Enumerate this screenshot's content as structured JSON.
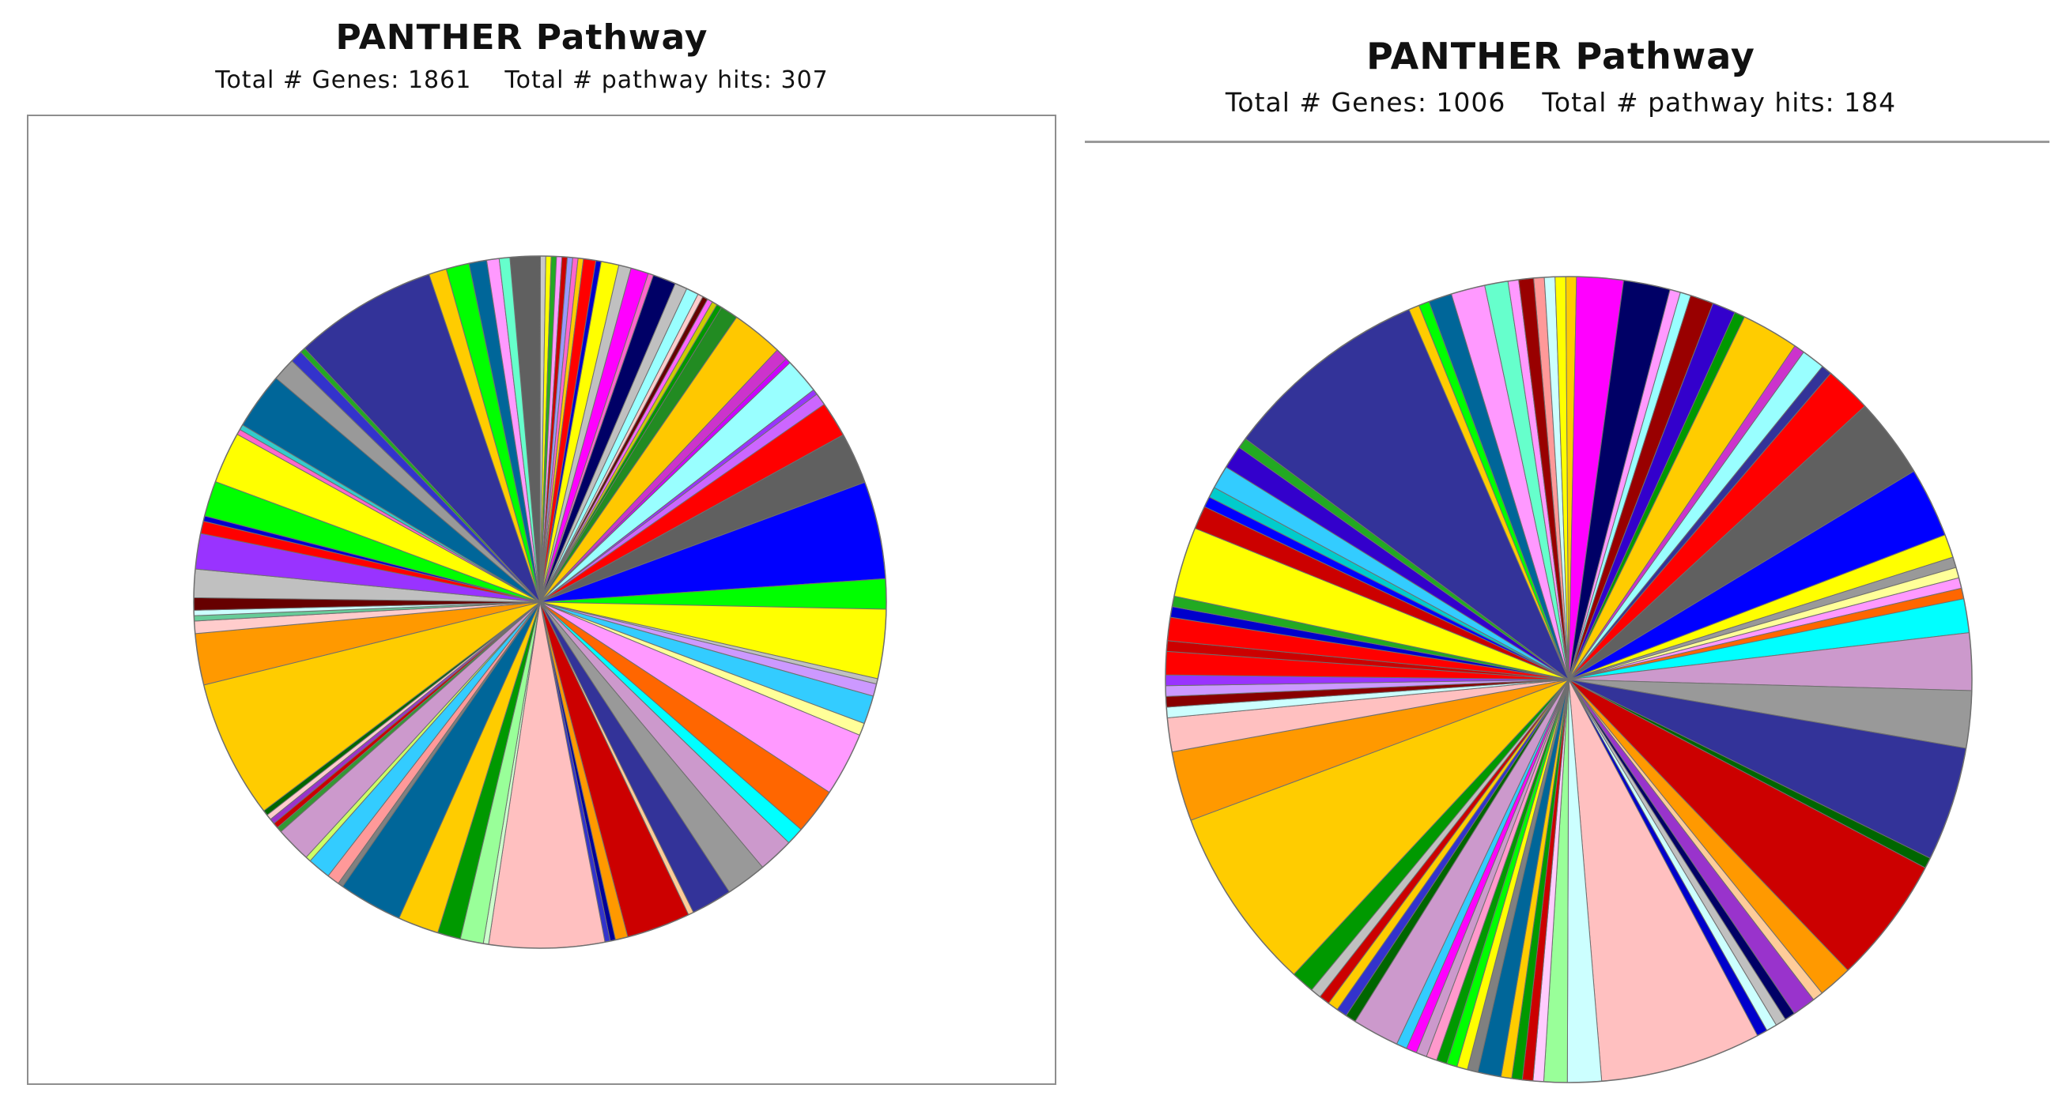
{
  "chart_data": [
    {
      "type": "pie",
      "title": "PANTHER Pathway",
      "subtitle": "Total # Genes: 1861    Total # pathway hits: 307",
      "total_genes": 1861,
      "total_pathway_hits": 307,
      "start_angle_deg": -95,
      "slices": [
        {
          "value": 1.7,
          "color": "#606060"
        },
        {
          "value": 0.3,
          "color": "#c9c9c9"
        },
        {
          "value": 0.3,
          "color": "#ffff00"
        },
        {
          "value": 0.3,
          "color": "#22aa22"
        },
        {
          "value": 0.3,
          "color": "#ff99ff"
        },
        {
          "value": 0.3,
          "color": "#cc0000"
        },
        {
          "value": 0.3,
          "color": "#9999ff"
        },
        {
          "value": 0.3,
          "color": "#ff66cc"
        },
        {
          "value": 0.3,
          "color": "#ffcc00"
        },
        {
          "value": 0.7,
          "color": "#ff0000"
        },
        {
          "value": 0.3,
          "color": "#0000cc"
        },
        {
          "value": 1.0,
          "color": "#ffff00"
        },
        {
          "value": 0.7,
          "color": "#c0c0c0"
        },
        {
          "value": 1.0,
          "color": "#ff00ff"
        },
        {
          "value": 0.3,
          "color": "#ff66cc"
        },
        {
          "value": 1.3,
          "color": "#000066"
        },
        {
          "value": 0.7,
          "color": "#c0c0c0"
        },
        {
          "value": 0.7,
          "color": "#99ffff"
        },
        {
          "value": 0.3,
          "color": "#ffcccc"
        },
        {
          "value": 0.3,
          "color": "#660000"
        },
        {
          "value": 0.3,
          "color": "#ff66ff"
        },
        {
          "value": 0.3,
          "color": "#cccc00"
        },
        {
          "value": 0.3,
          "color": "#009900"
        },
        {
          "value": 1.0,
          "color": "#228b22"
        },
        {
          "value": 2.9,
          "color": "#ffc800"
        },
        {
          "value": 0.7,
          "color": "#cc33cc"
        },
        {
          "value": 0.3,
          "color": "#cc00ff"
        },
        {
          "value": 2.0,
          "color": "#99ffff"
        },
        {
          "value": 0.3,
          "color": "#9933ff"
        },
        {
          "value": 0.7,
          "color": "#cc66ff"
        },
        {
          "value": 2.0,
          "color": "#ff0000"
        },
        {
          "value": 2.9,
          "color": "#606060"
        },
        {
          "value": 5.5,
          "color": "#0000ff"
        },
        {
          "value": 1.7,
          "color": "#00ff00"
        },
        {
          "value": 3.9,
          "color": "#ffff00"
        },
        {
          "value": 0.3,
          "color": "#c0c0c0"
        },
        {
          "value": 0.7,
          "color": "#cc99ff"
        },
        {
          "value": 1.6,
          "color": "#33ccff"
        },
        {
          "value": 0.7,
          "color": "#ffff99"
        },
        {
          "value": 3.6,
          "color": "#ff99ff"
        },
        {
          "value": 2.6,
          "color": "#ff6600"
        },
        {
          "value": 1.0,
          "color": "#00ffff"
        },
        {
          "value": 2.0,
          "color": "#cc99cc"
        },
        {
          "value": 2.3,
          "color": "#999999"
        },
        {
          "value": 2.3,
          "color": "#333399"
        },
        {
          "value": 0.3,
          "color": "#ffcc99"
        },
        {
          "value": 3.6,
          "color": "#cc0000"
        },
        {
          "value": 0.7,
          "color": "#ff9900"
        },
        {
          "value": 0.3,
          "color": "#000099"
        },
        {
          "value": 0.3,
          "color": "#3333cc"
        },
        {
          "value": 6.5,
          "color": "#ffc0c0"
        },
        {
          "value": 0.3,
          "color": "#ccffcc"
        },
        {
          "value": 1.3,
          "color": "#99ff99"
        },
        {
          "value": 1.3,
          "color": "#009900"
        },
        {
          "value": 2.3,
          "color": "#ffcc00"
        },
        {
          "value": 3.6,
          "color": "#006699"
        },
        {
          "value": 0.3,
          "color": "#808080"
        },
        {
          "value": 0.7,
          "color": "#ff9999"
        },
        {
          "value": 1.3,
          "color": "#33ccff"
        },
        {
          "value": 0.3,
          "color": "#ccff66"
        },
        {
          "value": 2.0,
          "color": "#cc99cc"
        },
        {
          "value": 0.3,
          "color": "#339933"
        },
        {
          "value": 0.3,
          "color": "#cc0000"
        },
        {
          "value": 0.3,
          "color": "#9933cc"
        },
        {
          "value": 0.3,
          "color": "#ffcccc"
        },
        {
          "value": 0.3,
          "color": "#006600"
        },
        {
          "value": 7.8,
          "color": "#ffcc00"
        },
        {
          "value": 2.9,
          "color": "#ff9900"
        },
        {
          "value": 0.7,
          "color": "#ffcccc"
        },
        {
          "value": 0.3,
          "color": "#66cc99"
        },
        {
          "value": 0.3,
          "color": "#ccffff"
        },
        {
          "value": 0.7,
          "color": "#660000"
        },
        {
          "value": 1.6,
          "color": "#c0c0c0"
        },
        {
          "value": 2.0,
          "color": "#9933ff"
        },
        {
          "value": 0.7,
          "color": "#ff0000"
        },
        {
          "value": 0.3,
          "color": "#0000cc"
        },
        {
          "value": 2.0,
          "color": "#00ff00"
        },
        {
          "value": 2.9,
          "color": "#ffff00"
        },
        {
          "value": 0.3,
          "color": "#ff66cc"
        },
        {
          "value": 0.3,
          "color": "#33cccc"
        },
        {
          "value": 3.2,
          "color": "#006699"
        },
        {
          "value": 1.3,
          "color": "#999999"
        },
        {
          "value": 0.7,
          "color": "#3333cc"
        },
        {
          "value": 0.3,
          "color": "#22aa22"
        },
        {
          "value": 8.1,
          "color": "#333399"
        },
        {
          "value": 1.0,
          "color": "#ffcc00"
        },
        {
          "value": 1.3,
          "color": "#00ff00"
        },
        {
          "value": 1.0,
          "color": "#006699"
        },
        {
          "value": 0.7,
          "color": "#ff99ff"
        },
        {
          "value": 0.6,
          "color": "#66ffcc"
        }
      ]
    },
    {
      "type": "pie",
      "title": "PANTHER Pathway",
      "subtitle": "Total # Genes: 1006    Total # pathway hits: 184",
      "total_genes": 1006,
      "total_pathway_hits": 184,
      "start_angle_deg": -95,
      "slices": [
        {
          "value": 0.5,
          "color": "#ff9999"
        },
        {
          "value": 0.5,
          "color": "#ccffff"
        },
        {
          "value": 0.5,
          "color": "#ffff00"
        },
        {
          "value": 0.5,
          "color": "#ffcc00"
        },
        {
          "value": 2.2,
          "color": "#ff00ff"
        },
        {
          "value": 2.2,
          "color": "#000066"
        },
        {
          "value": 0.5,
          "color": "#ff99ff"
        },
        {
          "value": 0.5,
          "color": "#99ffff"
        },
        {
          "value": 1.1,
          "color": "#990000"
        },
        {
          "value": 1.1,
          "color": "#3300cc"
        },
        {
          "value": 0.5,
          "color": "#009900"
        },
        {
          "value": 2.7,
          "color": "#ffcc00"
        },
        {
          "value": 0.5,
          "color": "#cc33cc"
        },
        {
          "value": 1.1,
          "color": "#99ffff"
        },
        {
          "value": 0.5,
          "color": "#333399"
        },
        {
          "value": 2.2,
          "color": "#ff0000"
        },
        {
          "value": 3.8,
          "color": "#606060"
        },
        {
          "value": 3.3,
          "color": "#0000ff"
        },
        {
          "value": 1.1,
          "color": "#ffff00"
        },
        {
          "value": 0.5,
          "color": "#999999"
        },
        {
          "value": 0.5,
          "color": "#ffff99"
        },
        {
          "value": 0.5,
          "color": "#ff99ff"
        },
        {
          "value": 0.5,
          "color": "#ff6600"
        },
        {
          "value": 1.6,
          "color": "#00ffff"
        },
        {
          "value": 2.7,
          "color": "#cc99cc"
        },
        {
          "value": 2.7,
          "color": "#999999"
        },
        {
          "value": 5.4,
          "color": "#333399"
        },
        {
          "value": 0.5,
          "color": "#006600"
        },
        {
          "value": 6.0,
          "color": "#cc0000"
        },
        {
          "value": 1.6,
          "color": "#ff9900"
        },
        {
          "value": 0.5,
          "color": "#ffcc99"
        },
        {
          "value": 1.1,
          "color": "#9933cc"
        },
        {
          "value": 0.5,
          "color": "#000066"
        },
        {
          "value": 0.5,
          "color": "#c0c0c0"
        },
        {
          "value": 0.5,
          "color": "#ccffff"
        },
        {
          "value": 0.5,
          "color": "#0000cc"
        },
        {
          "value": 7.6,
          "color": "#ffc0c0"
        },
        {
          "value": 1.6,
          "color": "#ccffff"
        },
        {
          "value": 1.1,
          "color": "#99ff99"
        },
        {
          "value": 0.5,
          "color": "#ffccff"
        },
        {
          "value": 0.5,
          "color": "#cc0000"
        },
        {
          "value": 0.5,
          "color": "#009900"
        },
        {
          "value": 0.5,
          "color": "#ffcc00"
        },
        {
          "value": 1.1,
          "color": "#006699"
        },
        {
          "value": 0.5,
          "color": "#808080"
        },
        {
          "value": 0.5,
          "color": "#ffff00"
        },
        {
          "value": 0.5,
          "color": "#00ff00"
        },
        {
          "value": 0.5,
          "color": "#009900"
        },
        {
          "value": 0.5,
          "color": "#ff99cc"
        },
        {
          "value": 0.5,
          "color": "#cc99cc"
        },
        {
          "value": 0.5,
          "color": "#ff00ff"
        },
        {
          "value": 0.5,
          "color": "#33ccff"
        },
        {
          "value": 2.2,
          "color": "#cc99cc"
        },
        {
          "value": 0.5,
          "color": "#006600"
        },
        {
          "value": 0.5,
          "color": "#3333cc"
        },
        {
          "value": 0.5,
          "color": "#ffcc00"
        },
        {
          "value": 0.5,
          "color": "#cc0000"
        },
        {
          "value": 0.5,
          "color": "#c0c0c0"
        },
        {
          "value": 1.1,
          "color": "#009900"
        },
        {
          "value": 8.7,
          "color": "#ffcc00"
        },
        {
          "value": 3.3,
          "color": "#ff9900"
        },
        {
          "value": 1.6,
          "color": "#ffc0c0"
        },
        {
          "value": 0.5,
          "color": "#ccffff"
        },
        {
          "value": 0.5,
          "color": "#880000"
        },
        {
          "value": 0.5,
          "color": "#cc99ff"
        },
        {
          "value": 0.5,
          "color": "#9933ff"
        },
        {
          "value": 1.1,
          "color": "#ff0000"
        },
        {
          "value": 0.5,
          "color": "#cc0000"
        },
        {
          "value": 1.1,
          "color": "#ff0000"
        },
        {
          "value": 0.5,
          "color": "#0000cc"
        },
        {
          "value": 0.5,
          "color": "#22aa22"
        },
        {
          "value": 3.3,
          "color": "#ffff00"
        },
        {
          "value": 1.1,
          "color": "#cc0000"
        },
        {
          "value": 0.5,
          "color": "#0000ff"
        },
        {
          "value": 0.5,
          "color": "#00cccc"
        },
        {
          "value": 1.1,
          "color": "#33ccff"
        },
        {
          "value": 1.1,
          "color": "#3300cc"
        },
        {
          "value": 0.5,
          "color": "#22aa22"
        },
        {
          "value": 9.8,
          "color": "#333399"
        },
        {
          "value": 0.5,
          "color": "#ffcc00"
        },
        {
          "value": 0.5,
          "color": "#00ff00"
        },
        {
          "value": 1.1,
          "color": "#006699"
        },
        {
          "value": 1.6,
          "color": "#ff99ff"
        },
        {
          "value": 1.1,
          "color": "#66ffcc"
        },
        {
          "value": 0.5,
          "color": "#ff99ff"
        },
        {
          "value": 0.7,
          "color": "#990000"
        }
      ]
    }
  ]
}
